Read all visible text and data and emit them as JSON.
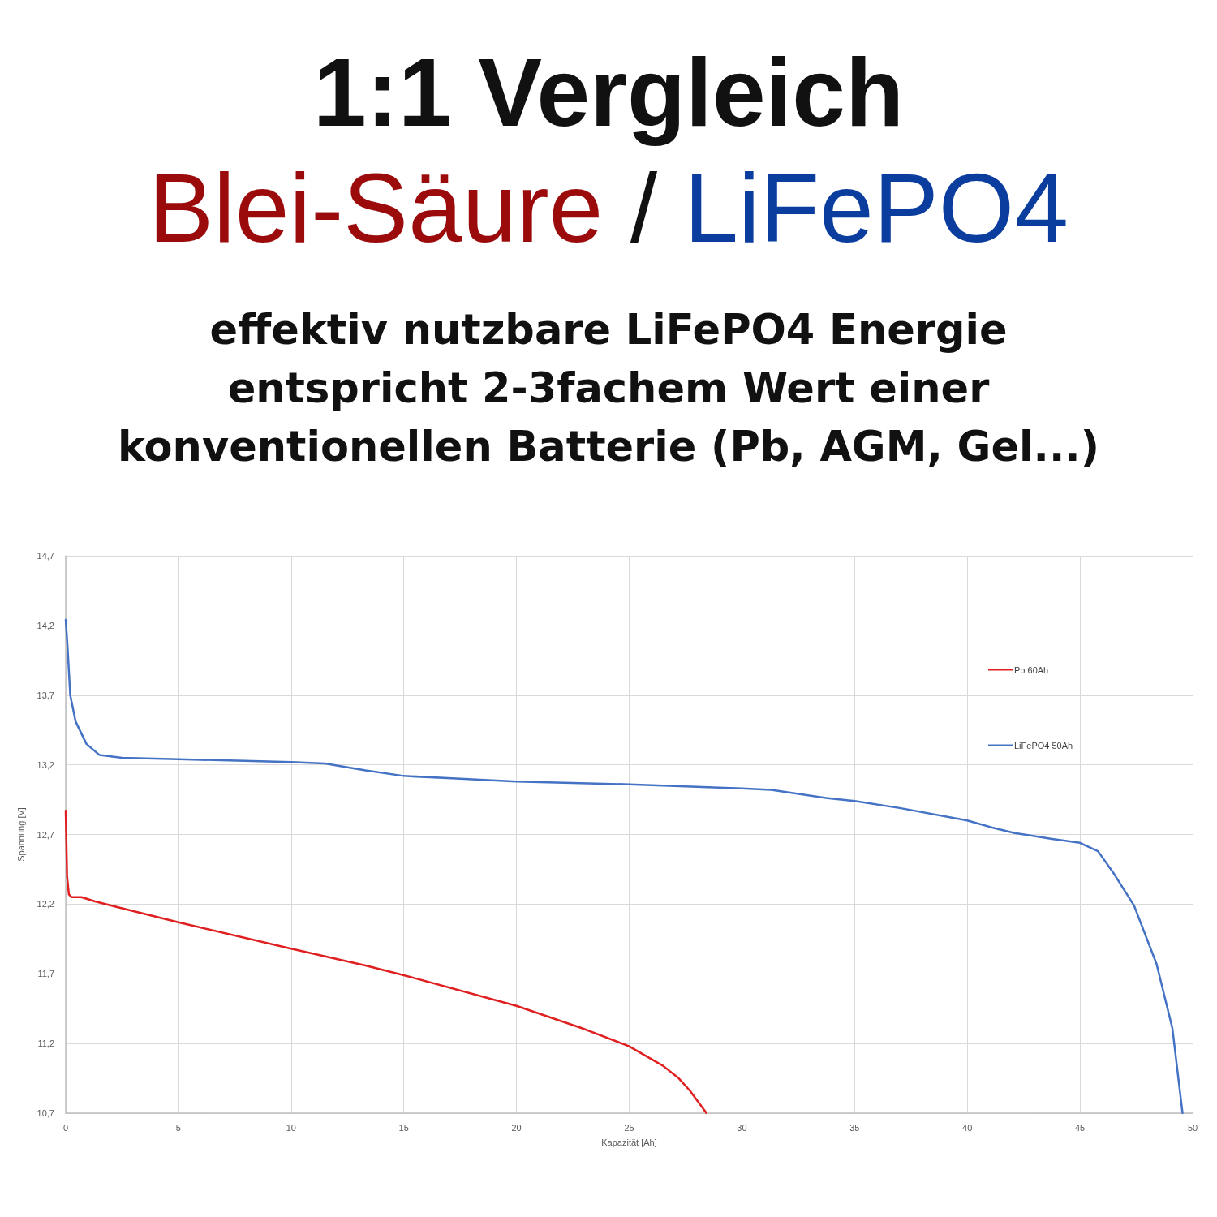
{
  "chart_data": {
    "type": "line",
    "title": "1:1 Vergleich",
    "subtitle": "Blei-Säure / LiFePO4",
    "annotations": [
      "effektiv nutzbare LiFePO4 Energie",
      "entspricht 2-3fachem Wert einer",
      "konventionellen Batterie (Pb, AGM, Gel...)"
    ],
    "xlabel": "Kapazität [Ah]",
    "ylabel": "Spannung [V]",
    "xlim": [
      0,
      50
    ],
    "xticks": [
      0,
      5,
      10,
      15,
      20,
      25,
      30,
      35,
      40,
      45,
      50
    ],
    "ylim": [
      10.7,
      14.7
    ],
    "yticks": [
      {
        "value": 10.7,
        "label": "10,7"
      },
      {
        "value": 11.2,
        "label": "11,2"
      },
      {
        "value": 11.7,
        "label": "11,7"
      },
      {
        "value": 12.2,
        "label": "12,2"
      },
      {
        "value": 12.7,
        "label": "12,7"
      },
      {
        "value": 13.2,
        "label": "13,2"
      },
      {
        "value": 13.7,
        "label": "13,7"
      },
      {
        "value": 14.2,
        "label": "14,2"
      },
      {
        "value": 14.7,
        "label": "14,7"
      }
    ],
    "grid": true,
    "legend": "top right",
    "series": [
      {
        "name": "Pb 60Ah",
        "color": "#e02020",
        "x": [
          0,
          0.06,
          0.14,
          0.26,
          0.7,
          1.3,
          2.5,
          5,
          10,
          13.3,
          15,
          20,
          22.9,
          25,
          26.5,
          27.2,
          27.7,
          28.43
        ],
        "values": [
          12.87,
          12.4,
          12.27,
          12.25,
          12.25,
          12.22,
          12.17,
          12.07,
          11.88,
          11.76,
          11.69,
          11.47,
          11.31,
          11.18,
          11.04,
          10.95,
          10.86,
          10.7
        ]
      },
      {
        "name": "LiFePO4 50Ah",
        "color": "#4472c4",
        "x": [
          0,
          0.08,
          0.2,
          0.44,
          0.92,
          1.5,
          2.5,
          5,
          10,
          11.5,
          13.3,
          15,
          17.5,
          20,
          25,
          30,
          31.3,
          33.8,
          35,
          37,
          40,
          41.1,
          42.1,
          43.7,
          45,
          45.8,
          46.5,
          47.4,
          48.4,
          49.1,
          49.55
        ],
        "values": [
          14.24,
          14.05,
          13.7,
          13.51,
          13.35,
          13.27,
          13.25,
          13.24,
          13.22,
          13.21,
          13.16,
          13.12,
          13.1,
          13.08,
          13.06,
          13.03,
          13.02,
          12.96,
          12.94,
          12.89,
          12.8,
          12.75,
          12.71,
          12.67,
          12.64,
          12.58,
          12.42,
          12.19,
          11.77,
          11.31,
          10.7
        ]
      }
    ]
  }
}
